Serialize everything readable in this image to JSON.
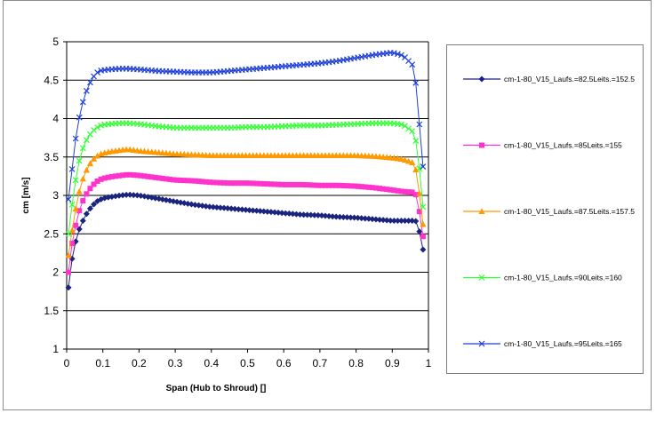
{
  "chart_data": {
    "type": "line",
    "title": "",
    "xlabel": "Span (Hub to Shroud) []",
    "ylabel": "cm [m/s]",
    "xlim": [
      0,
      1
    ],
    "ylim": [
      1,
      5
    ],
    "xticks": [
      "0",
      "0.1",
      "0.2",
      "0.3",
      "0.4",
      "0.5",
      "0.6",
      "0.7",
      "0.8",
      "0.9",
      "1"
    ],
    "yticks": [
      "1",
      "1.5",
      "2",
      "2.5",
      "3",
      "3.5",
      "4",
      "4.5",
      "5"
    ],
    "grid": "horizontal",
    "legend_position": "right",
    "series": [
      {
        "name": "cm-1-80_V15_Laufs.=82.5Leits.=152.5",
        "color": "#1a237e",
        "marker": "diamond",
        "points": [
          [
            0.005,
            1.8
          ],
          [
            0.012,
            2.1
          ],
          [
            0.02,
            2.3
          ],
          [
            0.03,
            2.5
          ],
          [
            0.04,
            2.62
          ],
          [
            0.05,
            2.72
          ],
          [
            0.06,
            2.8
          ],
          [
            0.07,
            2.86
          ],
          [
            0.08,
            2.91
          ],
          [
            0.09,
            2.94
          ],
          [
            0.1,
            2.96
          ],
          [
            0.12,
            2.98
          ],
          [
            0.15,
            3.0
          ],
          [
            0.17,
            3.01
          ],
          [
            0.2,
            3.0
          ],
          [
            0.25,
            2.96
          ],
          [
            0.3,
            2.92
          ],
          [
            0.35,
            2.88
          ],
          [
            0.4,
            2.85
          ],
          [
            0.45,
            2.83
          ],
          [
            0.5,
            2.81
          ],
          [
            0.55,
            2.79
          ],
          [
            0.6,
            2.77
          ],
          [
            0.65,
            2.75
          ],
          [
            0.7,
            2.74
          ],
          [
            0.75,
            2.72
          ],
          [
            0.8,
            2.71
          ],
          [
            0.85,
            2.69
          ],
          [
            0.9,
            2.67
          ],
          [
            0.93,
            2.67
          ],
          [
            0.96,
            2.67
          ],
          [
            0.97,
            2.66
          ],
          [
            0.98,
            2.4
          ],
          [
            0.99,
            2.19
          ]
        ]
      },
      {
        "name": "cm-1-80_V15_Laufs.=85Leits.=155",
        "color": "#ff33cc",
        "marker": "square",
        "points": [
          [
            0.005,
            2.0
          ],
          [
            0.012,
            2.3
          ],
          [
            0.02,
            2.5
          ],
          [
            0.03,
            2.72
          ],
          [
            0.04,
            2.88
          ],
          [
            0.05,
            2.98
          ],
          [
            0.06,
            3.06
          ],
          [
            0.07,
            3.12
          ],
          [
            0.08,
            3.17
          ],
          [
            0.09,
            3.2
          ],
          [
            0.1,
            3.22
          ],
          [
            0.12,
            3.24
          ],
          [
            0.15,
            3.26
          ],
          [
            0.17,
            3.27
          ],
          [
            0.2,
            3.26
          ],
          [
            0.25,
            3.23
          ],
          [
            0.3,
            3.2
          ],
          [
            0.35,
            3.19
          ],
          [
            0.4,
            3.17
          ],
          [
            0.45,
            3.16
          ],
          [
            0.5,
            3.16
          ],
          [
            0.55,
            3.15
          ],
          [
            0.6,
            3.14
          ],
          [
            0.65,
            3.14
          ],
          [
            0.7,
            3.13
          ],
          [
            0.75,
            3.13
          ],
          [
            0.8,
            3.12
          ],
          [
            0.85,
            3.1
          ],
          [
            0.9,
            3.07
          ],
          [
            0.93,
            3.05
          ],
          [
            0.96,
            3.04
          ],
          [
            0.97,
            2.98
          ],
          [
            0.98,
            2.6
          ],
          [
            0.99,
            2.33
          ]
        ]
      },
      {
        "name": "cm-1-80_V15_Laufs.=87.5Leits.=157.5",
        "color": "#ff9900",
        "marker": "triangle",
        "points": [
          [
            0.005,
            2.22
          ],
          [
            0.012,
            2.45
          ],
          [
            0.02,
            2.7
          ],
          [
            0.03,
            2.95
          ],
          [
            0.04,
            3.15
          ],
          [
            0.05,
            3.28
          ],
          [
            0.06,
            3.38
          ],
          [
            0.07,
            3.45
          ],
          [
            0.08,
            3.5
          ],
          [
            0.09,
            3.53
          ],
          [
            0.1,
            3.55
          ],
          [
            0.12,
            3.57
          ],
          [
            0.15,
            3.59
          ],
          [
            0.17,
            3.6
          ],
          [
            0.2,
            3.58
          ],
          [
            0.25,
            3.56
          ],
          [
            0.3,
            3.54
          ],
          [
            0.35,
            3.53
          ],
          [
            0.4,
            3.52
          ],
          [
            0.45,
            3.52
          ],
          [
            0.5,
            3.52
          ],
          [
            0.55,
            3.52
          ],
          [
            0.6,
            3.52
          ],
          [
            0.65,
            3.52
          ],
          [
            0.7,
            3.52
          ],
          [
            0.75,
            3.52
          ],
          [
            0.8,
            3.52
          ],
          [
            0.85,
            3.51
          ],
          [
            0.9,
            3.49
          ],
          [
            0.93,
            3.47
          ],
          [
            0.96,
            3.42
          ],
          [
            0.97,
            3.25
          ],
          [
            0.98,
            2.8
          ],
          [
            0.99,
            2.45
          ]
        ]
      },
      {
        "name": "cm-1-80_V15_Laufs.=90Leits.=160",
        "color": "#33ff33",
        "marker": "x",
        "points": [
          [
            0.005,
            2.5
          ],
          [
            0.012,
            2.78
          ],
          [
            0.02,
            3.05
          ],
          [
            0.03,
            3.35
          ],
          [
            0.04,
            3.55
          ],
          [
            0.05,
            3.68
          ],
          [
            0.06,
            3.76
          ],
          [
            0.07,
            3.83
          ],
          [
            0.08,
            3.87
          ],
          [
            0.09,
            3.9
          ],
          [
            0.1,
            3.92
          ],
          [
            0.12,
            3.93
          ],
          [
            0.15,
            3.94
          ],
          [
            0.17,
            3.94
          ],
          [
            0.2,
            3.93
          ],
          [
            0.25,
            3.9
          ],
          [
            0.3,
            3.88
          ],
          [
            0.35,
            3.88
          ],
          [
            0.4,
            3.88
          ],
          [
            0.45,
            3.88
          ],
          [
            0.5,
            3.89
          ],
          [
            0.55,
            3.89
          ],
          [
            0.6,
            3.9
          ],
          [
            0.65,
            3.91
          ],
          [
            0.7,
            3.91
          ],
          [
            0.75,
            3.92
          ],
          [
            0.8,
            3.93
          ],
          [
            0.85,
            3.94
          ],
          [
            0.9,
            3.94
          ],
          [
            0.93,
            3.92
          ],
          [
            0.96,
            3.82
          ],
          [
            0.97,
            3.6
          ],
          [
            0.98,
            3.1
          ],
          [
            0.99,
            2.6
          ]
        ]
      },
      {
        "name": "cm-1-80_V15_Laufs.=95Leits.=165",
        "color": "#1f3fd6",
        "marker": "x",
        "points": [
          [
            0.005,
            2.95
          ],
          [
            0.012,
            3.2
          ],
          [
            0.02,
            3.58
          ],
          [
            0.03,
            3.9
          ],
          [
            0.04,
            4.13
          ],
          [
            0.05,
            4.3
          ],
          [
            0.06,
            4.42
          ],
          [
            0.07,
            4.52
          ],
          [
            0.08,
            4.58
          ],
          [
            0.09,
            4.62
          ],
          [
            0.1,
            4.63
          ],
          [
            0.12,
            4.64
          ],
          [
            0.15,
            4.65
          ],
          [
            0.17,
            4.65
          ],
          [
            0.2,
            4.64
          ],
          [
            0.25,
            4.62
          ],
          [
            0.3,
            4.61
          ],
          [
            0.35,
            4.6
          ],
          [
            0.4,
            4.6
          ],
          [
            0.45,
            4.62
          ],
          [
            0.5,
            4.64
          ],
          [
            0.55,
            4.66
          ],
          [
            0.6,
            4.68
          ],
          [
            0.65,
            4.7
          ],
          [
            0.7,
            4.72
          ],
          [
            0.75,
            4.75
          ],
          [
            0.8,
            4.79
          ],
          [
            0.85,
            4.83
          ],
          [
            0.9,
            4.86
          ],
          [
            0.93,
            4.82
          ],
          [
            0.96,
            4.68
          ],
          [
            0.97,
            4.25
          ],
          [
            0.98,
            3.6
          ],
          [
            0.99,
            3.15
          ]
        ]
      }
    ]
  }
}
